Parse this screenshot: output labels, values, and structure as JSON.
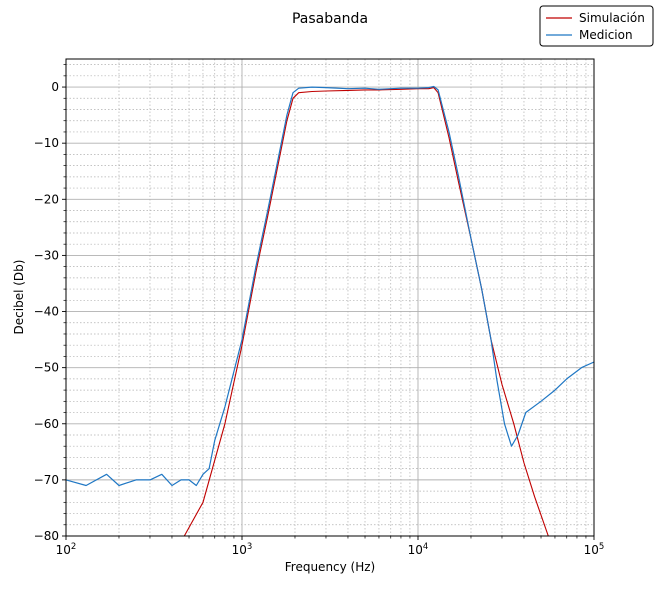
{
  "chart_data": {
    "type": "line",
    "title": "Pasabanda",
    "xlabel": "Frequency (Hz)",
    "ylabel": "Decibel (Db)",
    "xscale": "log",
    "xlim": [
      100,
      100000
    ],
    "ylim": [
      -80,
      5
    ],
    "grid": "major and minor, dotted",
    "legend_position": "top-right",
    "x_ticks": [
      {
        "value": 100,
        "base": "10",
        "exp": "2"
      },
      {
        "value": 1000,
        "base": "10",
        "exp": "3"
      },
      {
        "value": 10000,
        "base": "10",
        "exp": "4"
      },
      {
        "value": 100000,
        "base": "10",
        "exp": "5"
      }
    ],
    "y_ticks": [
      {
        "value": 0,
        "label": "0"
      },
      {
        "value": -10,
        "label": "−10"
      },
      {
        "value": -20,
        "label": "−20"
      },
      {
        "value": -30,
        "label": "−30"
      },
      {
        "value": -40,
        "label": "−40"
      },
      {
        "value": -50,
        "label": "−50"
      },
      {
        "value": -60,
        "label": "−60"
      },
      {
        "value": -70,
        "label": "−70"
      },
      {
        "value": -80,
        "label": "−80"
      }
    ],
    "series": [
      {
        "name": "Simulación",
        "color": "#c00000",
        "x": [
          470,
          600,
          800,
          1000,
          1200,
          1400,
          1600,
          1800,
          1950,
          2100,
          2500,
          3000,
          4000,
          5000,
          6000,
          8000,
          10000,
          11500,
          12300,
          13000,
          15000,
          17000,
          20000,
          23000,
          26000,
          30000,
          35000,
          40000,
          46000,
          55000
        ],
        "y": [
          -80,
          -74,
          -60,
          -46,
          -33,
          -23,
          -14,
          -6,
          -2,
          -1,
          -0.8,
          -0.7,
          -0.6,
          -0.5,
          -0.5,
          -0.4,
          -0.3,
          -0.3,
          -0.1,
          -1,
          -9,
          -17,
          -27,
          -36,
          -45,
          -53,
          -60,
          -67,
          -73,
          -80
        ]
      },
      {
        "name": "Medicion",
        "color": "#1f77c4",
        "x": [
          100,
          130,
          170,
          200,
          250,
          300,
          350,
          400,
          450,
          500,
          550,
          600,
          650,
          700,
          800,
          1000,
          1200,
          1400,
          1600,
          1800,
          1950,
          2100,
          2500,
          3000,
          4000,
          5000,
          6000,
          8000,
          10000,
          11500,
          12300,
          13000,
          15000,
          17000,
          20000,
          23000,
          26000,
          28000,
          31000,
          34000,
          37000,
          41000,
          50000,
          60000,
          70000,
          85000,
          100000
        ],
        "y": [
          -70,
          -71,
          -69,
          -71,
          -70,
          -70,
          -69,
          -71,
          -70,
          -70,
          -71,
          -69,
          -68,
          -63,
          -57,
          -45,
          -32,
          -22,
          -13,
          -5,
          -1,
          -0.2,
          0,
          -0.1,
          -0.3,
          -0.2,
          -0.4,
          -0.2,
          -0.2,
          -0.1,
          0.1,
          -0.5,
          -8,
          -16,
          -27,
          -36,
          -45,
          -52,
          -60,
          -64,
          -62,
          -58,
          -56,
          -54,
          -52,
          -50,
          -49
        ]
      }
    ]
  }
}
